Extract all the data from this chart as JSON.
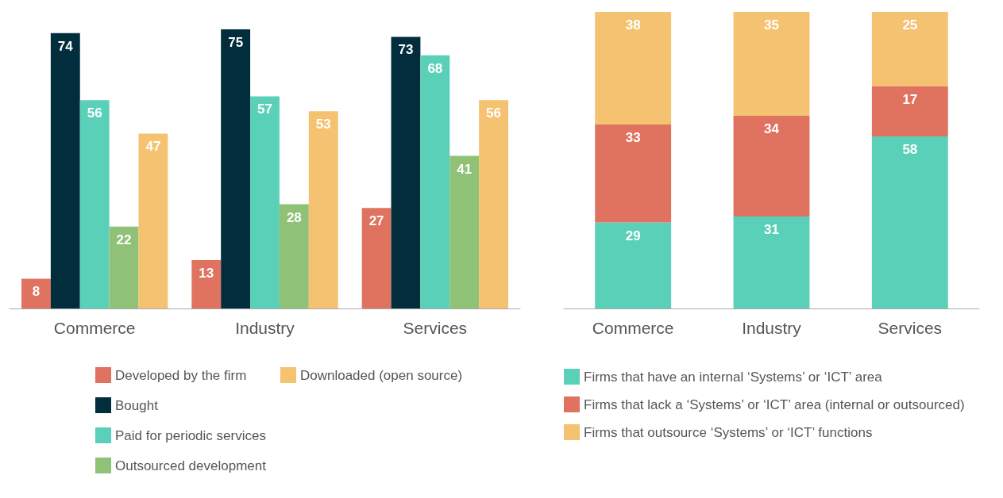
{
  "chart_data": [
    {
      "type": "bar",
      "categories": [
        "Commerce",
        "Industry",
        "Services"
      ],
      "series": [
        {
          "name": "Developed by the firm",
          "color": "#e07360",
          "values": [
            8,
            13,
            27
          ]
        },
        {
          "name": "Bought",
          "color": "#022d3c",
          "values": [
            74,
            75,
            73
          ]
        },
        {
          "name": "Paid for periodic services",
          "color": "#5bd0b8",
          "values": [
            56,
            57,
            68
          ]
        },
        {
          "name": "Outsourced development",
          "color": "#8fc177",
          "values": [
            22,
            28,
            41
          ]
        },
        {
          "name": "Downloaded (open source)",
          "color": "#f5c272",
          "values": [
            47,
            53,
            56
          ]
        }
      ],
      "data_labels": true,
      "legend": "bottom"
    },
    {
      "type": "bar",
      "stacked": true,
      "categories": [
        "Commerce",
        "Industry",
        "Services"
      ],
      "series": [
        {
          "name": "Firms that have an internal ‘Systems’ or ‘ICT’ area",
          "color": "#5bd0b8",
          "values": [
            29,
            31,
            58
          ]
        },
        {
          "name": "Firms that lack a ‘Systems’ or ‘ICT’ area (internal or outsourced)",
          "color": "#e07360",
          "values": [
            33,
            34,
            17
          ]
        },
        {
          "name": "Firms that outsource ‘Systems’ or ‘ICT’ functions",
          "color": "#f5c272",
          "values": [
            38,
            35,
            25
          ]
        }
      ],
      "data_labels": true,
      "legend": "bottom"
    }
  ]
}
